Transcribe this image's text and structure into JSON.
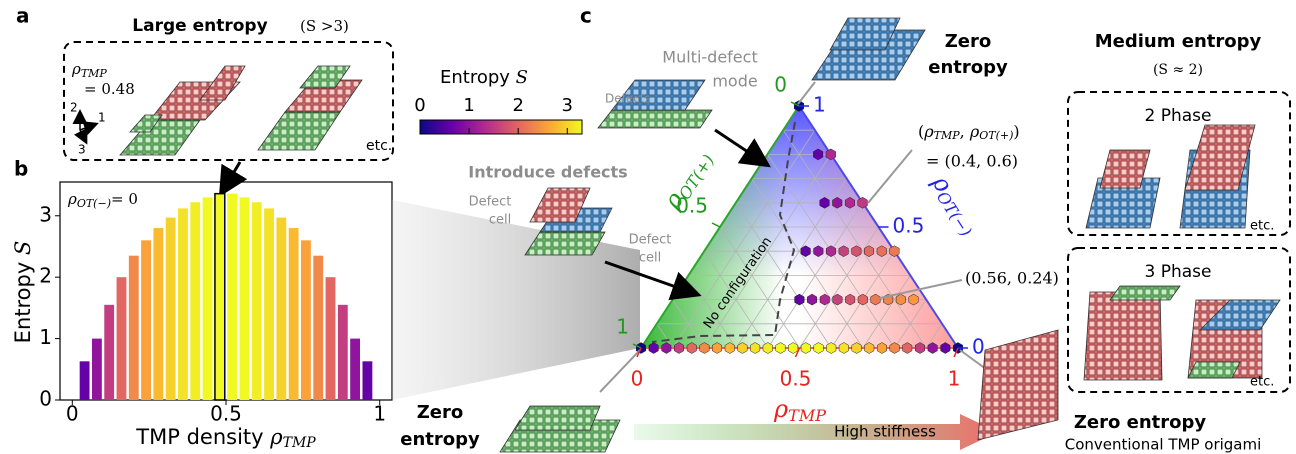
{
  "panel_labels": [
    "a",
    "b",
    "c"
  ],
  "panel_a": {
    "title": "Large entropy",
    "title_note": "(S >3)",
    "density": {
      "symbol": "ρ",
      "sub": "TMP",
      "value": "= 0.48"
    },
    "axes": [
      "2",
      "1",
      "3"
    ],
    "etc": "etc."
  },
  "colorbar": {
    "title": "Entropy",
    "symbol": "S",
    "clim": [
      0,
      3.3
    ],
    "ticks": [
      0,
      1,
      2,
      3
    ],
    "colormap": [
      "#0d0887",
      "#6a00a8",
      "#b12a90",
      "#e16462",
      "#fca636",
      "#f0f921"
    ]
  },
  "chart_data": [
    {
      "type": "bar",
      "x": [
        0.04,
        0.08,
        0.12,
        0.16,
        0.2,
        0.24,
        0.28,
        0.32,
        0.36,
        0.4,
        0.44,
        0.48,
        0.52,
        0.56,
        0.6,
        0.64,
        0.68,
        0.72,
        0.76,
        0.8,
        0.84,
        0.88,
        0.92,
        0.96
      ],
      "values": [
        0.63,
        1.0,
        1.55,
        2.0,
        2.35,
        2.6,
        2.8,
        2.97,
        3.12,
        3.22,
        3.3,
        3.36,
        3.36,
        3.3,
        3.22,
        3.12,
        2.97,
        2.8,
        2.6,
        2.35,
        2.0,
        1.55,
        1.0,
        0.63
      ],
      "xlim": [
        -0.04,
        1.04
      ],
      "ylim": [
        0,
        3.55
      ],
      "xticks": [
        0,
        0.5,
        1
      ],
      "yticks": [
        0,
        1,
        2,
        3
      ],
      "xlabel": {
        "text": "TMP density",
        "symbol": "ρ",
        "sub": "TMP"
      },
      "ylabel": {
        "text": "Entropy",
        "symbol": "S"
      },
      "annotation": {
        "symbol": "ρ",
        "sub": "OT(−)",
        "value": "= 0"
      },
      "highlight_x": 0.48
    },
    {
      "type": "ternary",
      "axes": {
        "otp": {
          "symbol": "ρ",
          "sub": "OT(+)",
          "color": "#1f9a1f",
          "ticks": [
            0,
            0.5,
            1
          ]
        },
        "otm": {
          "symbol": "ρ",
          "sub": "OT(−)",
          "color": "#2424e8",
          "ticks": [
            0,
            0.5,
            1
          ]
        },
        "tmp": {
          "symbol": "ρ",
          "sub": "TMP",
          "color": "#e8231f",
          "ticks": [
            0,
            0.5,
            1
          ]
        }
      },
      "grid": true,
      "points": {
        "tmp": [
          0.04,
          0.08,
          0.12,
          0.16,
          0.2,
          0.24,
          0.28,
          0.32,
          0.36,
          0.4,
          0.44,
          0.48,
          0.52,
          0.56,
          0.6,
          0.64,
          0.68,
          0.72,
          0.76,
          0.8,
          0.84,
          0.88,
          0.92,
          0.96,
          0,
          1,
          0,
          0.4,
          0.44,
          0.48,
          0.52,
          0.56,
          0.6,
          0.64,
          0.68,
          0.72,
          0.76,
          0.32,
          0.36,
          0.4,
          0.44,
          0.48,
          0.52,
          0.56,
          0.6,
          0.28,
          0.32,
          0.36,
          0.4,
          0.16,
          0.2
        ],
        "otm": [
          0,
          0,
          0,
          0,
          0,
          0,
          0,
          0,
          0,
          0,
          0,
          0,
          0,
          0,
          0,
          0,
          0,
          0,
          0,
          0,
          0,
          0,
          0,
          0,
          0,
          0,
          1,
          0.2,
          0.2,
          0.2,
          0.2,
          0.2,
          0.2,
          0.2,
          0.2,
          0.2,
          0.2,
          0.4,
          0.4,
          0.4,
          0.4,
          0.4,
          0.4,
          0.4,
          0.4,
          0.6,
          0.6,
          0.6,
          0.6,
          0.8,
          0.8
        ],
        "entropy": [
          0.63,
          1.0,
          1.55,
          2.0,
          2.35,
          2.6,
          2.8,
          2.97,
          3.12,
          3.22,
          3.3,
          3.36,
          3.36,
          3.3,
          3.22,
          3.12,
          2.97,
          2.8,
          2.6,
          2.35,
          2.0,
          1.55,
          1.0,
          0.63,
          0,
          0,
          0,
          0.6,
          1.0,
          1.3,
          1.6,
          1.8,
          2.0,
          2.2,
          2.3,
          2.4,
          2.5,
          0.6,
          1.0,
          1.3,
          1.6,
          1.8,
          2.0,
          2.1,
          2.2,
          0.6,
          1.0,
          1.3,
          1.5,
          0.6,
          1.3
        ]
      },
      "no_config": "No configuration",
      "coord_label": {
        "open": "(",
        "s1": "ρ",
        "sub1": "TMP",
        "sep": ", ",
        "s2": "ρ",
        "sub2": "OT(+)",
        "close": ")"
      },
      "coord_value_1": "= (0.4, 0.6)",
      "coord_value_2": "(0.56, 0.24)"
    }
  ],
  "annotations": {
    "zero_top": [
      "Zero",
      "entropy"
    ],
    "multi_defect": [
      "Multi-defect",
      "mode"
    ],
    "defects": "Defects",
    "introduce": "Introduce defects",
    "defect_cell_1": [
      "Defect",
      "cell"
    ],
    "defect_cell_2": [
      "Defect",
      "cell"
    ],
    "medium": "Medium entropy",
    "medium_note": "(S ≈ 2)",
    "phase2": "2 Phase",
    "phase3": "3 Phase",
    "etc": [
      "etc.",
      "etc."
    ],
    "zero_left": [
      "Zero",
      "entropy"
    ],
    "zero_right": "Zero entropy",
    "conventional": "Conventional TMP origami",
    "stiffness": "High stiffness"
  }
}
